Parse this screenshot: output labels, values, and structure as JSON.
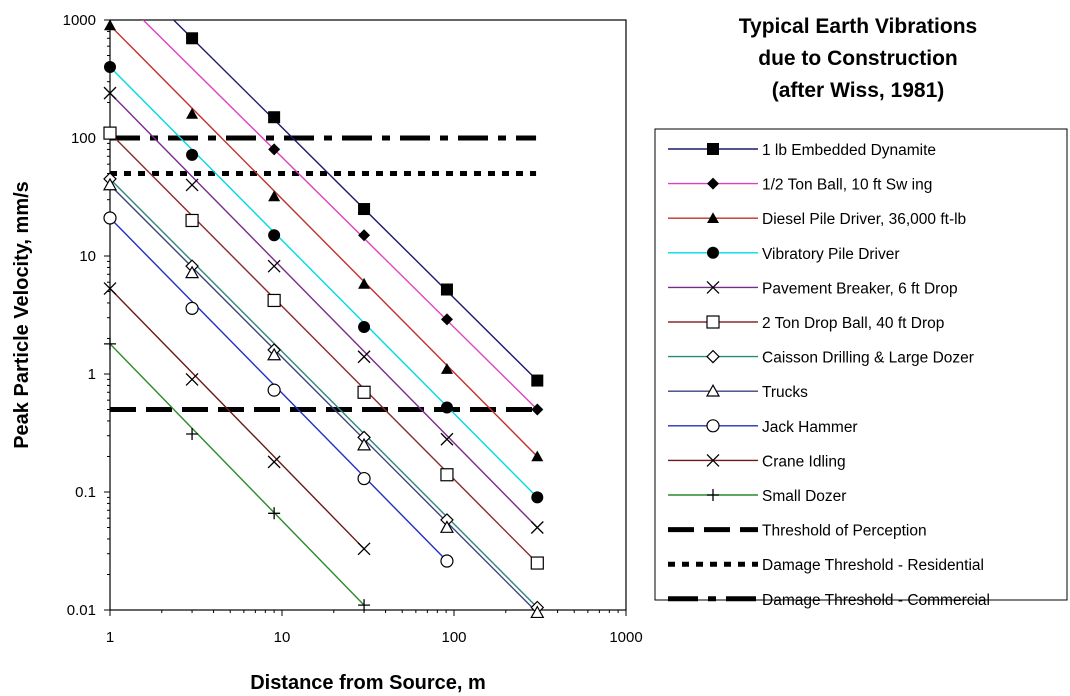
{
  "chart_data": {
    "type": "line",
    "title_lines": [
      "Typical Earth Vibrations",
      "due to Construction",
      "(after Wiss, 1981)"
    ],
    "xlabel": "Distance from Source, m",
    "ylabel": "Peak Particle Velocity, mm/s",
    "x_scale": "log",
    "y_scale": "log",
    "xlim": [
      1,
      1000
    ],
    "ylim": [
      0.01,
      1000
    ],
    "x_ticks": [
      1,
      10,
      100,
      1000
    ],
    "x_tick_labels": [
      "1",
      "10",
      "100",
      "1000"
    ],
    "y_ticks": [
      0.01,
      0.1,
      1,
      10,
      100,
      1000
    ],
    "y_tick_labels": [
      "0.01",
      "0.1",
      "1",
      "10",
      "100",
      "1000"
    ],
    "grid": false,
    "legend_position": "right",
    "series": [
      {
        "name": "1 lb Embedded Dynamite",
        "color": "#1a1a6e",
        "marker": "filled-square",
        "x": [
          3,
          9,
          30,
          91,
          305
        ],
        "y": [
          700,
          150,
          25,
          5.2,
          0.88
        ]
      },
      {
        "name": "1/2 Ton Ball, 10 ft Sw ing",
        "color": "#e040c0",
        "marker": "filled-diamond",
        "x": [
          9,
          30,
          91,
          305
        ],
        "y": [
          80,
          15,
          2.9,
          0.5
        ]
      },
      {
        "name": "Diesel Pile Driver, 36,000 ft-lb",
        "color": "#c0302a",
        "marker": "filled-triangle",
        "x": [
          1,
          3,
          9,
          30,
          91,
          305
        ],
        "y": [
          900,
          160,
          32,
          5.8,
          1.1,
          0.2
        ]
      },
      {
        "name": "Vibratory Pile Driver",
        "color": "#00d8e8",
        "marker": "filled-circle",
        "x": [
          1,
          3,
          9,
          30,
          91,
          305
        ],
        "y": [
          400,
          72,
          15,
          2.5,
          0.52,
          0.09
        ]
      },
      {
        "name": "Pavement Breaker, 6 ft Drop",
        "color": "#7a2a8a",
        "marker": "x",
        "x": [
          1,
          3,
          9,
          30,
          91,
          305
        ],
        "y": [
          240,
          40,
          8.2,
          1.4,
          0.28,
          0.05
        ]
      },
      {
        "name": "2 Ton Drop Ball, 40 ft Drop",
        "color": "#8b2a2a",
        "marker": "open-square",
        "x": [
          1,
          3,
          9,
          30,
          91,
          305
        ],
        "y": [
          110,
          20,
          4.2,
          0.7,
          0.14,
          0.025
        ]
      },
      {
        "name": "Caisson Drilling & Large Dozer",
        "color": "#2a8a7a",
        "marker": "open-diamond",
        "x": [
          1,
          3,
          9,
          30,
          91,
          305
        ],
        "y": [
          45,
          8.2,
          1.6,
          0.29,
          0.058,
          0.0105
        ]
      },
      {
        "name": "Trucks",
        "color": "#404080",
        "marker": "open-triangle",
        "x": [
          1,
          3,
          9,
          30,
          91,
          305
        ],
        "y": [
          40,
          7.2,
          1.45,
          0.25,
          0.05,
          0.0095
        ]
      },
      {
        "name": "Jack Hammer",
        "color": "#2030c0",
        "marker": "open-circle",
        "x": [
          1,
          3,
          9,
          30,
          91
        ],
        "y": [
          21,
          3.6,
          0.73,
          0.13,
          0.026
        ]
      },
      {
        "name": "Crane Idling",
        "color": "#6a1818",
        "marker": "x",
        "x": [
          1,
          3,
          9,
          30
        ],
        "y": [
          5.3,
          0.9,
          0.18,
          0.033
        ]
      },
      {
        "name": "Small Dozer",
        "color": "#2a8a2a",
        "marker": "plus",
        "x": [
          1,
          3,
          9,
          30
        ],
        "y": [
          1.8,
          0.31,
          0.066,
          0.011
        ]
      }
    ],
    "threshold_lines": [
      {
        "name": "Threshold of Perception",
        "y": 0.5,
        "x_range": [
          1,
          300
        ],
        "style": "long-dash",
        "color": "#000000"
      },
      {
        "name": "Damage Threshold - Residential",
        "y": 50,
        "x_range": [
          1,
          300
        ],
        "style": "dot",
        "color": "#000000"
      },
      {
        "name": "Damage Threshold - Commercial",
        "y": 100,
        "x_range": [
          1,
          300
        ],
        "style": "dash-dot",
        "color": "#000000"
      }
    ]
  }
}
